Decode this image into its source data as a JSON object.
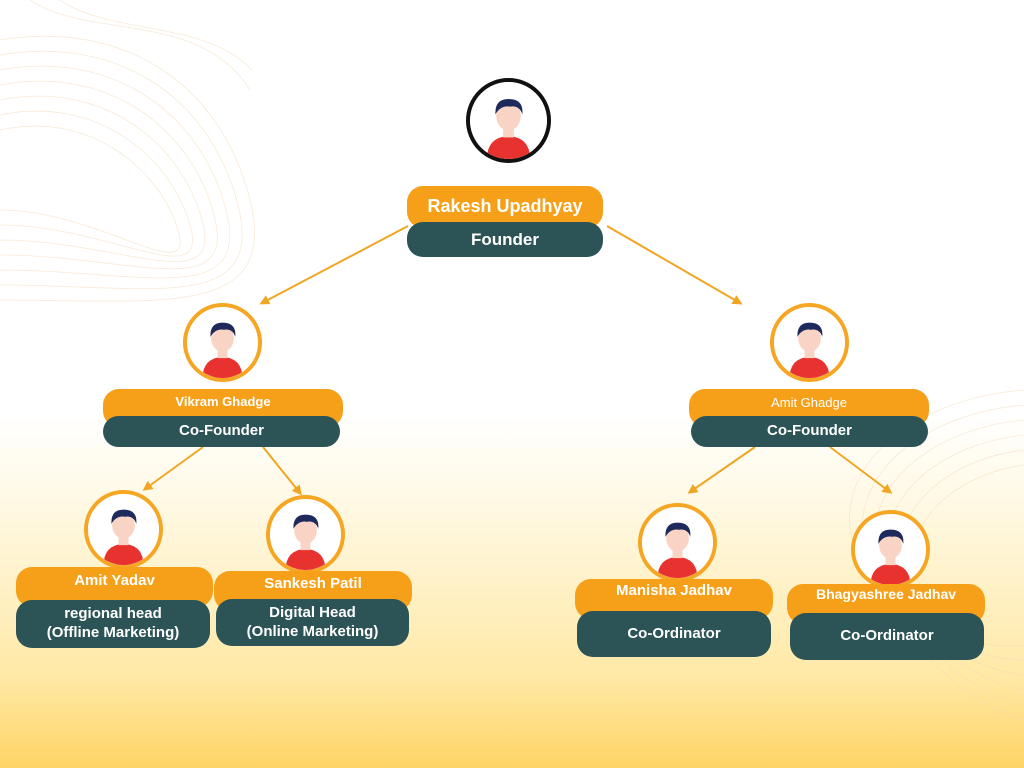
{
  "founder": {
    "name": "Rakesh  Upadhyay",
    "role": "Founder"
  },
  "cofounder_left": {
    "name": "Vikram Ghadge",
    "role": "Co-Founder"
  },
  "cofounder_right": {
    "name": "Amit Ghadge",
    "role": "Co-Founder"
  },
  "amit_yadav": {
    "name": "Amit Yadav",
    "role_line1": "regional head",
    "role_line2": "(Offline Marketing)"
  },
  "sankesh_patil": {
    "name": "Sankesh Patil",
    "role_line1": "Digital Head",
    "role_line2": "(Online Marketing)"
  },
  "manisha_jadhav": {
    "name": "Manisha Jadhav",
    "role": "Co-Ordinator"
  },
  "bhagyashree_jadhav": {
    "name": "Bhagyashree Jadhav",
    "role": "Co-Ordinator"
  },
  "colors": {
    "orange": "#f6a01a",
    "teal": "#2c5457",
    "arrow": "#f0a623",
    "avatar_shirt": "#e8322f",
    "avatar_hair": "#1f2a5c",
    "avatar_skin": "#f9d3c4"
  },
  "icons": [
    "person-avatar-icon",
    "arrow-icon"
  ]
}
